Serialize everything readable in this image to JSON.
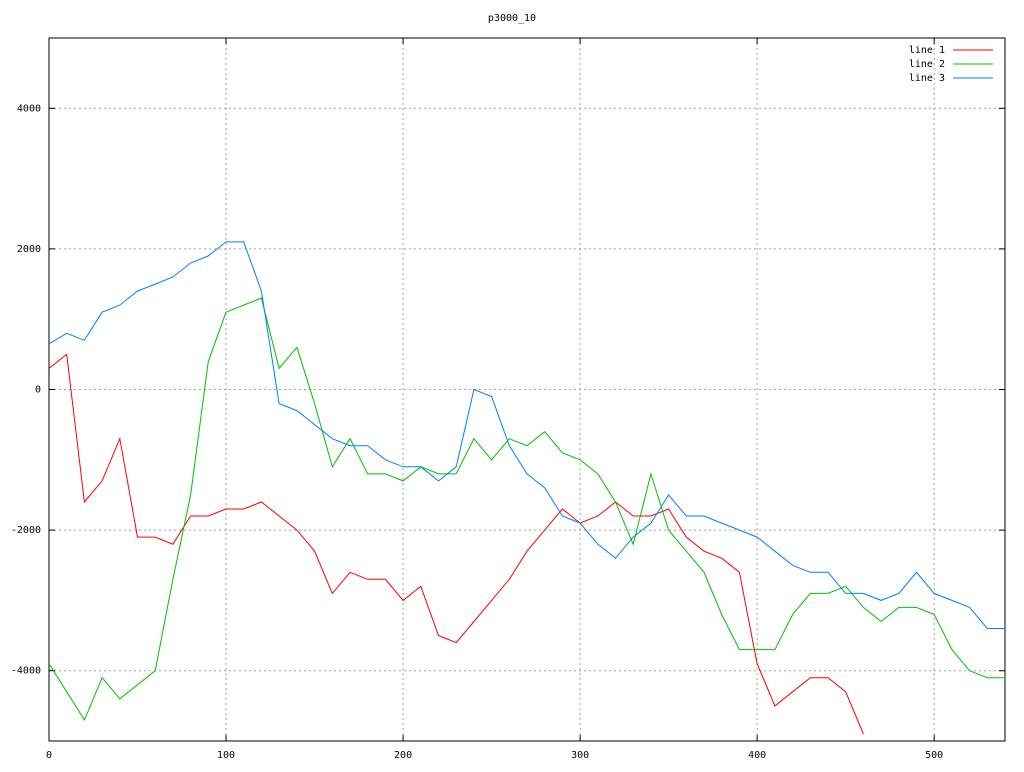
{
  "chart_data": {
    "type": "line",
    "title": "p3000_10",
    "x": [
      0,
      10,
      20,
      30,
      40,
      50,
      60,
      70,
      80,
      90,
      100,
      110,
      120,
      130,
      140,
      150,
      160,
      170,
      180,
      190,
      200,
      210,
      220,
      230,
      240,
      250,
      260,
      270,
      280,
      290,
      300,
      310,
      320,
      330,
      340,
      350,
      360,
      370,
      380,
      390,
      400,
      410,
      420,
      430,
      440,
      450,
      460,
      470,
      480,
      490,
      500,
      510,
      520,
      530,
      540
    ],
    "series": [
      {
        "name": "line 1",
        "color": "#ff0000",
        "values": [
          300,
          500,
          -1600,
          -1300,
          -700,
          -2100,
          -2100,
          -2200,
          -1800,
          -1800,
          -1700,
          -1700,
          -1600,
          -1800,
          -2000,
          -2300,
          -2900,
          -2600,
          -2700,
          -2700,
          -3000,
          -2800,
          -3500,
          -3600,
          -3300,
          -3000,
          -2700,
          -2300,
          -2000,
          -1700,
          -1900,
          -1800,
          -1600,
          -1800,
          -1800,
          -1700,
          -2100,
          -2300,
          -2400,
          -2600,
          -3900,
          -4500,
          -4300,
          -4100,
          -4100,
          -4300,
          -4900,
          null,
          null,
          null,
          null,
          null,
          null,
          null,
          null
        ]
      },
      {
        "name": "line 2",
        "color": "#00c000",
        "values": [
          -3900,
          -4300,
          -4700,
          -4100,
          -4400,
          -4200,
          -4000,
          -2700,
          -1500,
          400,
          1100,
          1200,
          1300,
          300,
          600,
          -200,
          -1100,
          -700,
          -1200,
          -1200,
          -1300,
          -1100,
          -1200,
          -1200,
          -700,
          -1000,
          -700,
          -800,
          -600,
          -900,
          -1000,
          -1200,
          -1600,
          -2200,
          -1200,
          -2000,
          -2300,
          -2600,
          -3200,
          -3700,
          -3700,
          -3700,
          -3200,
          -2900,
          -2900,
          -2800,
          -3100,
          -3300,
          -3100,
          -3100,
          -3200,
          -3700,
          -4000,
          -4100,
          -4100
        ]
      },
      {
        "name": "line 3",
        "color": "#0080ff",
        "values": [
          650,
          800,
          700,
          1100,
          1200,
          1400,
          1500,
          1600,
          1800,
          1900,
          2100,
          2100,
          1400,
          -200,
          -300,
          -500,
          -700,
          -800,
          -800,
          -1000,
          -1100,
          -1100,
          -1300,
          -1100,
          0,
          -100,
          -800,
          -1200,
          -1400,
          -1800,
          -1900,
          -2200,
          -2400,
          -2100,
          -1900,
          -1500,
          -1800,
          -1800,
          -1900,
          -2000,
          -2100,
          -2300,
          -2500,
          -2600,
          -2600,
          -2900,
          -2900,
          -3000,
          -2900,
          -2600,
          -2900,
          -3000,
          -3100,
          -3400,
          -3400
        ]
      }
    ],
    "xlim": [
      0,
      540
    ],
    "ylim": [
      -5000,
      5000
    ],
    "xticks": [
      0,
      100,
      200,
      300,
      400,
      500
    ],
    "yticks": [
      -4000,
      -2000,
      0,
      2000,
      4000
    ],
    "grid": true,
    "legend": "top-right"
  }
}
